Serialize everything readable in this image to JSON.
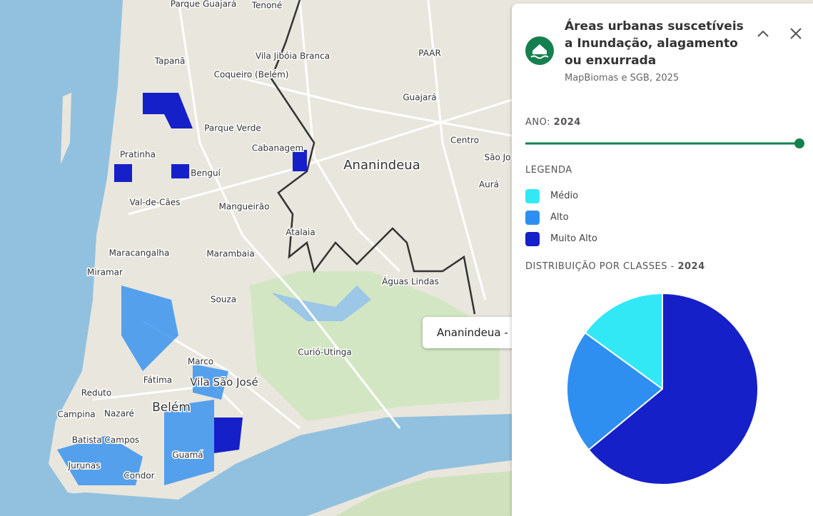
{
  "map": {
    "labels": [
      "Parque Guajará",
      "Tenoné",
      "Tapanã",
      "Vila Jibóia Branca",
      "PAAR",
      "Coqueiro (Belém)",
      "Guajará",
      "Parque Verde",
      "Pratinha",
      "Cabanagem",
      "Centro",
      "São Jo",
      "Ananindeua",
      "Benguí",
      "Aurá",
      "Val-de-Cães",
      "Mangueirão",
      "Atalaia",
      "Maracangalha",
      "Marambaia",
      "Miramar",
      "Águas Lindas",
      "Souza",
      "Curió-Utinga",
      "Marco",
      "Fátima",
      "Vila São José",
      "Reduto",
      "Campina",
      "Nazaré",
      "Belém",
      "Batista Campos",
      "Guamá",
      "Jurunas",
      "Condor"
    ],
    "tooltip": "Ananindeua -"
  },
  "panel": {
    "title": "Áreas urbanas suscetíveis a Inundação, alagamento ou enxurrada",
    "source": "MapBiomas e SGB, 2025",
    "year_label": "ANO:",
    "year": "2024",
    "legend_title": "LEGENDA",
    "distribution_label": "DISTRIBUIÇÃO POR CLASSES -",
    "distribution_year": "2024"
  },
  "chart_data": {
    "type": "pie",
    "categories": [
      "Médio",
      "Alto",
      "Muito Alto"
    ],
    "values": [
      15,
      21,
      64
    ],
    "colors": [
      "#33e8f5",
      "#2f8ff0",
      "#1620c8"
    ]
  }
}
